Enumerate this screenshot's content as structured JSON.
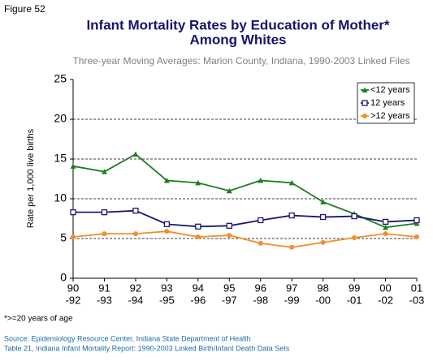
{
  "chart_data": {
    "type": "line",
    "figure_label": "Figure 52",
    "title": [
      "Infant Mortality Rates by Education of Mother*",
      "Among Whites"
    ],
    "subtitle": "Three-year Moving Averages: Marion County, Indiana, 1990-2003 Linked Files",
    "ylabel": "Rate per 1,000 live births",
    "categories": [
      [
        "90",
        "-92"
      ],
      [
        "91",
        "-93"
      ],
      [
        "92",
        "-94"
      ],
      [
        "93",
        "-95"
      ],
      [
        "94",
        "-96"
      ],
      [
        "95",
        "-97"
      ],
      [
        "96",
        "-98"
      ],
      [
        "97",
        "-99"
      ],
      [
        "98",
        "-00"
      ],
      [
        "99",
        "-01"
      ],
      [
        "00",
        "-02"
      ],
      [
        "01",
        "-03"
      ]
    ],
    "series": [
      {
        "name": "<12 years",
        "color": "#1e7d1e",
        "marker": "triangle",
        "values": [
          14.1,
          13.4,
          15.6,
          12.3,
          12.0,
          11.0,
          12.3,
          12.0,
          9.6,
          8.1,
          6.4,
          6.9
        ]
      },
      {
        "name": "12 years",
        "color": "#1a1a6e",
        "marker": "square",
        "values": [
          8.3,
          8.3,
          8.5,
          6.8,
          6.5,
          6.6,
          7.3,
          7.9,
          7.7,
          7.8,
          7.1,
          7.3
        ]
      },
      {
        "name": ">12 years",
        "color": "#f0902a",
        "marker": "circle",
        "values": [
          5.2,
          5.6,
          5.6,
          5.9,
          5.2,
          5.4,
          4.4,
          3.9,
          4.5,
          5.1,
          5.6,
          5.2
        ]
      }
    ],
    "ylim": [
      0,
      25
    ],
    "yticks": [
      0,
      5,
      10,
      15,
      20,
      25
    ],
    "grid": true,
    "legend": "upper right",
    "footnote": "*>=20 years of age",
    "source": [
      "Source: Epidemiology Resource Center, Indiana State Department of Health",
      "Table 21, Indiana Infant Mortality Report: 1990-2003 Linked Birth/Infant Death Data Sets"
    ]
  }
}
